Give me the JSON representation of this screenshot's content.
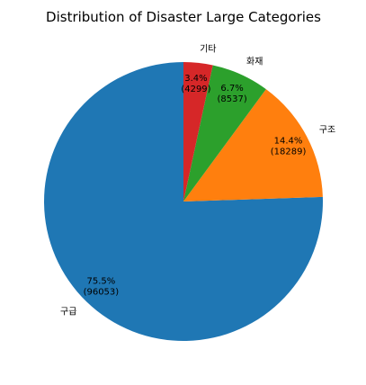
{
  "chart_data": {
    "type": "pie",
    "title": "Distribution of Disaster Large Categories",
    "start_angle_deg": 90,
    "direction": "counterclockwise",
    "slices": [
      {
        "label": "구급",
        "value": 96053,
        "percent_label": "75.5%",
        "count_label": "(96053)",
        "color": "#1f77b4"
      },
      {
        "label": "구조",
        "value": 18289,
        "percent_label": "14.4%",
        "count_label": "(18289)",
        "color": "#ff7f0e"
      },
      {
        "label": "화재",
        "value": 8537,
        "percent_label": "6.7%",
        "count_label": "(8537)",
        "color": "#2ca02c"
      },
      {
        "label": "기타",
        "value": 4299,
        "percent_label": "3.4%",
        "count_label": "(4299)",
        "color": "#d62728"
      }
    ]
  }
}
